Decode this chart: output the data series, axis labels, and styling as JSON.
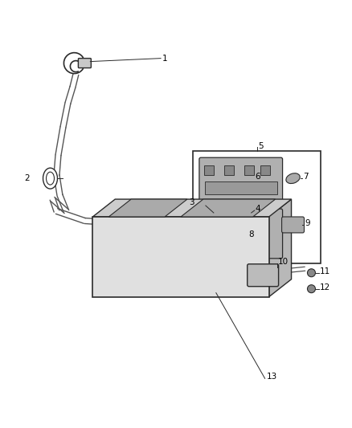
{
  "bg_color": "#ffffff",
  "line_color": "#2a2a2a",
  "label_color": "#000000",
  "figsize": [
    4.38,
    5.33
  ],
  "dpi": 100,
  "cable_color": "#555555",
  "component_fill": "#c8c8c8",
  "battery_fill": "#e0e0e0",
  "battery_top": "#cccccc",
  "battery_right": "#b8b8b8",
  "box_fill": "#ffffff"
}
